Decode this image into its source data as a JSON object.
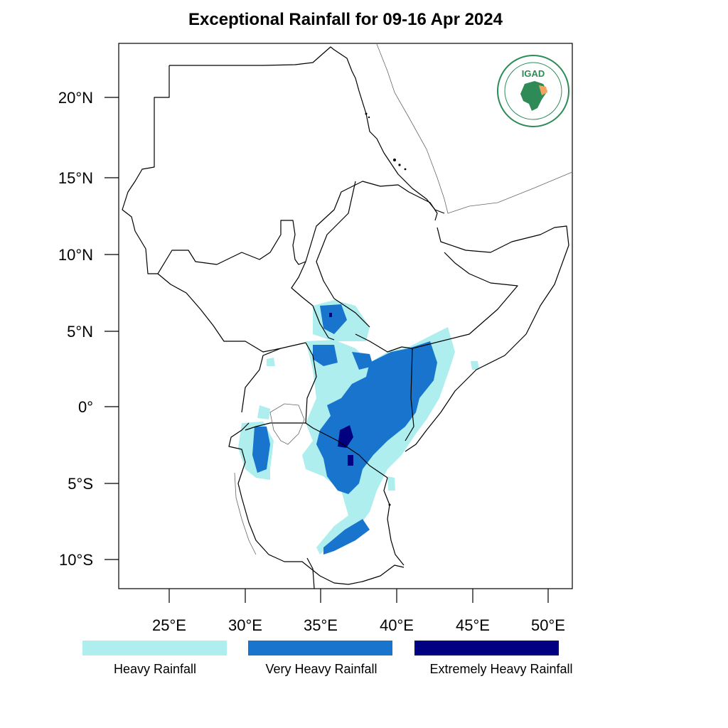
{
  "title": "Exceptional Rainfall for 09-16 Apr 2024",
  "latitude_ticks": [
    "20°N",
    "15°N",
    "10°N",
    "5°N",
    "0°",
    "5°S",
    "10°S"
  ],
  "longitude_ticks": [
    "25°E",
    "30°E",
    "35°E",
    "40°E",
    "45°E",
    "50°E"
  ],
  "legend": [
    {
      "label": "Heavy Rainfall",
      "color": "#aeeeee"
    },
    {
      "label": "Very Heavy Rainfall",
      "color": "#1874cd"
    },
    {
      "label": "Extremely Heavy Rainfall",
      "color": "#000080"
    }
  ],
  "logo": {
    "text": "IGAD",
    "color": "#2e8b57",
    "accent": "#f4a460"
  }
}
